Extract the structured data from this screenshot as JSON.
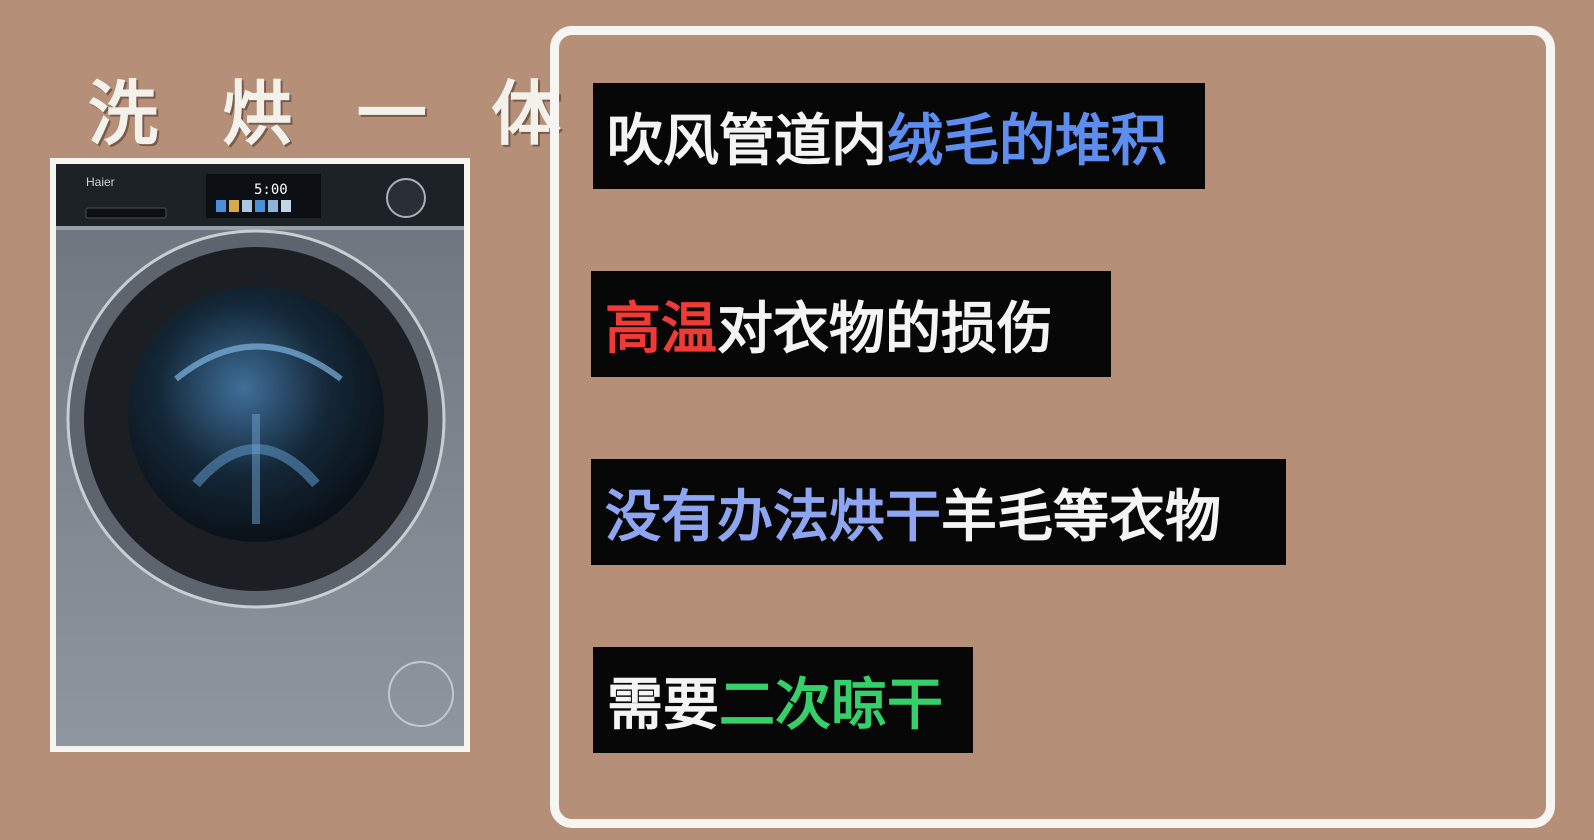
{
  "title": "洗 烘 一 体",
  "machine": {
    "brand": "Haier",
    "display_time": "5:00"
  },
  "items": [
    {
      "segments": [
        {
          "text": "吹风管道内",
          "color": "white"
        },
        {
          "text": "绒毛的堆积",
          "color": "blue"
        }
      ]
    },
    {
      "segments": [
        {
          "text": "高温",
          "color": "red"
        },
        {
          "text": "对衣物的损伤",
          "color": "white"
        }
      ]
    },
    {
      "segments": [
        {
          "text": "没有办法烘干",
          "color": "purple-blue"
        },
        {
          "text": "羊毛等衣物",
          "color": "white"
        }
      ]
    },
    {
      "segments": [
        {
          "text": "需要",
          "color": "white"
        },
        {
          "text": "二次晾干",
          "color": "green"
        }
      ]
    }
  ],
  "colors": {
    "background": "#b68f78",
    "white": "#f4f4f4",
    "blue": "#5e8df0",
    "red": "#ef3a36",
    "purple-blue": "#8ea6f2",
    "green": "#36d06a"
  }
}
